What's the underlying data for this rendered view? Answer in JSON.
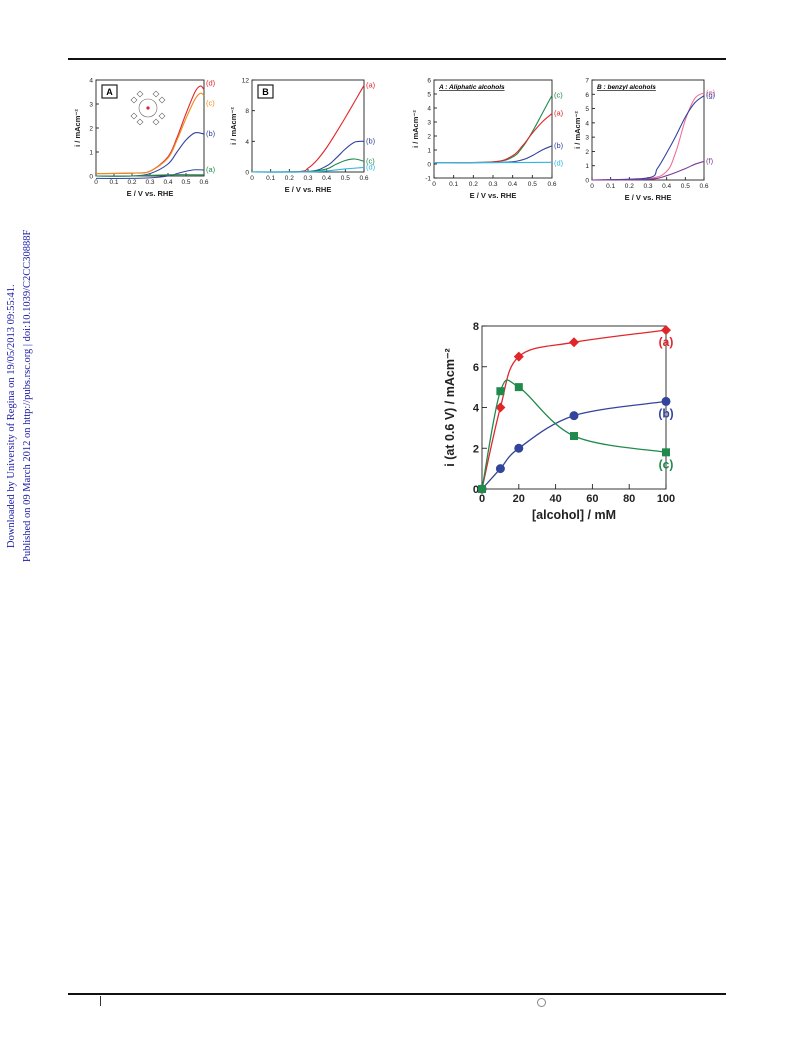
{
  "sidebar": {
    "line1": "Downloaded by University of Regina on 19/05/2013 09:55:41.",
    "line2": "Published on 09 March 2012 on http://pubs.rsc.org | doi:10.1039/C2CC30888F"
  },
  "colors": {
    "red": "#e0262b",
    "blue": "#33449b",
    "green": "#1f8a4c",
    "cyan": "#2fb6e3",
    "orange": "#f08a1c",
    "pink": "#ef6f9a",
    "purple": "#7a3c94"
  },
  "chart_data": [
    {
      "type": "line",
      "panel": "A",
      "badge": "A",
      "xlabel": "E / V vs. RHE",
      "ylabel": "i / mAcm⁻²",
      "xlim": [
        0,
        0.6
      ],
      "ylim": [
        0,
        4
      ],
      "xticks": [
        "0",
        "0.1",
        "0.2",
        "0.3",
        "0.4",
        "0.5",
        "0.6"
      ],
      "yticks": [
        "0",
        "1",
        "2",
        "3",
        "4"
      ],
      "series": [
        {
          "name": "(d)",
          "color": "#e0262b",
          "x": [
            0,
            0.2,
            0.3,
            0.4,
            0.45,
            0.5,
            0.55,
            0.58,
            0.6
          ],
          "y": [
            0.1,
            0.12,
            0.2,
            0.8,
            1.6,
            2.6,
            3.5,
            3.75,
            3.6
          ]
        },
        {
          "name": "(c)",
          "color": "#f08a1c",
          "x": [
            0,
            0.2,
            0.3,
            0.4,
            0.45,
            0.5,
            0.55,
            0.58,
            0.6
          ],
          "y": [
            0.1,
            0.12,
            0.2,
            0.75,
            1.5,
            2.4,
            3.2,
            3.45,
            3.35
          ]
        },
        {
          "name": "(b)",
          "color": "#33449b",
          "x": [
            0,
            0.2,
            0.3,
            0.4,
            0.45,
            0.5,
            0.55,
            0.6
          ],
          "y": [
            0,
            0,
            0.1,
            0.5,
            1.0,
            1.5,
            1.8,
            1.75
          ]
        },
        {
          "name": "(a)",
          "color": "#1f8a4c",
          "x": [
            0,
            0.2,
            0.4,
            0.6
          ],
          "y": [
            0,
            0,
            0.05,
            0.05
          ]
        }
      ]
    },
    {
      "type": "line",
      "panel": "B",
      "badge": "B",
      "xlabel": "E / V vs. RHE",
      "ylabel": "i / mAcm⁻²",
      "xlim": [
        0,
        0.6
      ],
      "ylim": [
        0,
        12
      ],
      "xticks": [
        "0",
        "0.1",
        "0.2",
        "0.3",
        "0.4",
        "0.5",
        "0.6"
      ],
      "yticks": [
        "0",
        "4",
        "8",
        "12"
      ],
      "series": [
        {
          "name": "(a)",
          "color": "#e0262b",
          "x": [
            0,
            0.25,
            0.3,
            0.35,
            0.4,
            0.45,
            0.5,
            0.55,
            0.6
          ],
          "y": [
            0,
            0.05,
            0.5,
            1.6,
            3.2,
            5.1,
            7.1,
            9.2,
            11.3
          ]
        },
        {
          "name": "(b)",
          "color": "#33449b",
          "x": [
            0,
            0.3,
            0.4,
            0.45,
            0.5,
            0.55,
            0.6
          ],
          "y": [
            0,
            0.05,
            0.8,
            1.8,
            3.0,
            3.9,
            4.0
          ]
        },
        {
          "name": "(c)",
          "color": "#1f8a4c",
          "x": [
            0,
            0.3,
            0.4,
            0.45,
            0.5,
            0.55,
            0.6
          ],
          "y": [
            0,
            0.05,
            0.4,
            1.0,
            1.5,
            1.7,
            1.4
          ]
        },
        {
          "name": "(d)",
          "color": "#2fb6e3",
          "x": [
            0,
            0.3,
            0.4,
            0.5,
            0.6
          ],
          "y": [
            0,
            0.02,
            0.15,
            0.4,
            0.6
          ]
        }
      ]
    },
    {
      "type": "line",
      "panel": "A",
      "title": "A : Aliphatic alcohols",
      "xlabel": "E / V vs. RHE",
      "ylabel": "i / mAcm⁻²",
      "xlim": [
        0,
        0.6
      ],
      "ylim": [
        -1,
        6
      ],
      "xticks": [
        "0",
        "0.1",
        "0.2",
        "0.3",
        "0.4",
        "0.5",
        "0.6"
      ],
      "yticks": [
        "-1",
        "0",
        "1",
        "2",
        "3",
        "4",
        "5",
        "6"
      ],
      "series": [
        {
          "name": "(c)",
          "color": "#1f8a4c",
          "x": [
            0,
            0.3,
            0.4,
            0.45,
            0.5,
            0.55,
            0.6
          ],
          "y": [
            0.1,
            0.15,
            0.5,
            1.2,
            2.3,
            3.6,
            4.9
          ]
        },
        {
          "name": "(a)",
          "color": "#e0262b",
          "x": [
            0,
            0.3,
            0.4,
            0.45,
            0.5,
            0.55,
            0.6
          ],
          "y": [
            0.1,
            0.15,
            0.6,
            1.3,
            2.2,
            3.0,
            3.6
          ]
        },
        {
          "name": "(b)",
          "color": "#33449b",
          "x": [
            0,
            0.35,
            0.45,
            0.5,
            0.55,
            0.6
          ],
          "y": [
            0.1,
            0.12,
            0.3,
            0.6,
            1.0,
            1.3
          ]
        },
        {
          "name": "(d)",
          "color": "#2fb6e3",
          "x": [
            0,
            0.3,
            0.6
          ],
          "y": [
            0.1,
            0.1,
            0.12
          ]
        }
      ]
    },
    {
      "type": "line",
      "panel": "B",
      "title": "B : benzyl alcohols",
      "xlabel": "E / V vs. RHE",
      "ylabel": "i / mAcm⁻²",
      "xlim": [
        0,
        0.6
      ],
      "ylim": [
        0,
        7
      ],
      "xticks": [
        "0",
        "0.1",
        "0.2",
        "0.3",
        "0.4",
        "0.5",
        "0.6"
      ],
      "yticks": [
        "0",
        "1",
        "2",
        "3",
        "4",
        "5",
        "6",
        "7"
      ],
      "series": [
        {
          "name": "(e)",
          "color": "#ef6f9a",
          "x": [
            0,
            0.3,
            0.4,
            0.45,
            0.5,
            0.55,
            0.6
          ],
          "y": [
            0,
            0.1,
            0.6,
            2.0,
            4.2,
            5.7,
            6.1
          ]
        },
        {
          "name": "(g)",
          "color": "#33449b",
          "x": [
            0,
            0.3,
            0.35,
            0.4,
            0.45,
            0.5,
            0.55,
            0.6
          ],
          "y": [
            0,
            0.15,
            0.8,
            1.9,
            3.1,
            4.4,
            5.4,
            5.9
          ]
        },
        {
          "name": "(f)",
          "color": "#7a3c94",
          "x": [
            0,
            0.3,
            0.4,
            0.5,
            0.55,
            0.6
          ],
          "y": [
            0,
            0.05,
            0.3,
            0.8,
            1.1,
            1.3
          ]
        }
      ]
    },
    {
      "type": "scatter",
      "panel": "C",
      "xlabel": "[alcohol] / mM",
      "ylabel": "i (at 0.6 V) / mAcm⁻²",
      "xlim": [
        0,
        100
      ],
      "ylim": [
        0,
        8
      ],
      "xticks": [
        "0",
        "20",
        "40",
        "60",
        "80",
        "100"
      ],
      "yticks": [
        "0",
        "2",
        "4",
        "6",
        "8"
      ],
      "series": [
        {
          "name": "(a)",
          "color": "#e0262b",
          "marker": "diamond",
          "x": [
            0,
            10,
            20,
            50,
            100
          ],
          "y": [
            0,
            4.0,
            6.5,
            7.2,
            7.8
          ]
        },
        {
          "name": "(b)",
          "color": "#33449b",
          "marker": "circle",
          "x": [
            0,
            10,
            20,
            50,
            100
          ],
          "y": [
            0,
            1.0,
            2.0,
            3.6,
            4.3
          ]
        },
        {
          "name": "(c)",
          "color": "#1f8a4c",
          "marker": "square",
          "x": [
            0,
            10,
            20,
            50,
            100
          ],
          "y": [
            0,
            4.8,
            5.0,
            2.6,
            1.8
          ]
        }
      ]
    }
  ]
}
